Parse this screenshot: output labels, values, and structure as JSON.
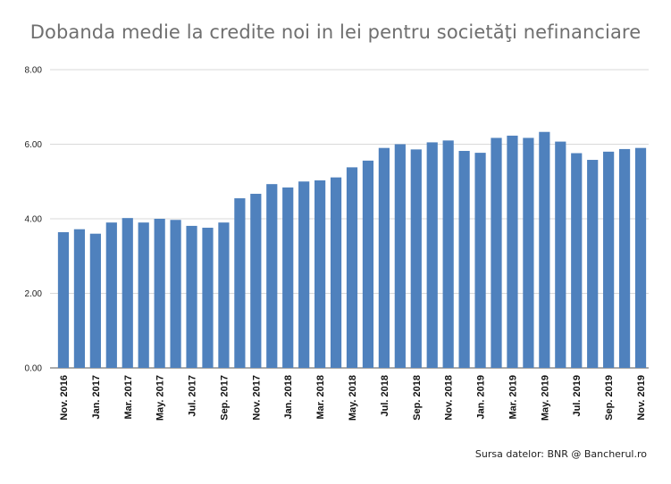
{
  "chart_data": {
    "type": "bar",
    "title": "Dobanda medie la credite noi in lei pentru societăţi nefinanciare",
    "xlabel": "",
    "ylabel": "",
    "ylim": [
      0,
      8
    ],
    "yticks": [
      "0.00",
      "2.00",
      "4.00",
      "6.00",
      "8.00"
    ],
    "grid": true,
    "bar_color": "#4f81bd",
    "categories": [
      "Nov. 2016",
      "Dec. 2016",
      "Jan. 2017",
      "Feb. 2017",
      "Mar. 2017",
      "Apr. 2017",
      "May. 2017",
      "Jun. 2017",
      "Jul. 2017",
      "Aug. 2017",
      "Sep. 2017",
      "Oct. 2017",
      "Nov. 2017",
      "Dec. 2017",
      "Jan. 2018",
      "Feb. 2018",
      "Mar. 2018",
      "Apr. 2018",
      "May. 2018",
      "Jun. 2018",
      "Jul. 2018",
      "Aug. 2018",
      "Sep. 2018",
      "Oct. 2018",
      "Nov. 2018",
      "Dec. 2018",
      "Jan. 2019",
      "Feb. 2019",
      "Mar. 2019",
      "Apr. 2019",
      "May. 2019",
      "Jun. 2019",
      "Jul. 2019",
      "Aug. 2019",
      "Sep. 2019",
      "Oct. 2019",
      "Nov. 2019"
    ],
    "visible_tick_labels": [
      "Nov. 2016",
      "",
      "Jan. 2017",
      "",
      "Mar. 2017",
      "",
      "May. 2017",
      "",
      "Jul. 2017",
      "",
      "Sep. 2017",
      "",
      "Nov. 2017",
      "",
      "Jan. 2018",
      "",
      "Mar. 2018",
      "",
      "May. 2018",
      "",
      "Jul. 2018",
      "",
      "Sep. 2018",
      "",
      "Nov. 2018",
      "",
      "Jan. 2019",
      "",
      "Mar. 2019",
      "",
      "May. 2019",
      "",
      "Jul. 2019",
      "",
      "Sep. 2019",
      "",
      "Nov. 2019"
    ],
    "values": [
      3.64,
      3.72,
      3.6,
      3.9,
      4.02,
      3.9,
      4.0,
      3.97,
      3.81,
      3.76,
      3.9,
      4.55,
      4.67,
      4.93,
      4.84,
      5.0,
      5.03,
      5.11,
      5.38,
      5.56,
      5.9,
      6.0,
      5.86,
      6.05,
      6.1,
      5.82,
      5.77,
      6.17,
      6.23,
      6.17,
      6.33,
      6.07,
      5.76,
      5.58,
      5.8,
      5.87,
      5.9
    ]
  },
  "source_note": "Sursa datelor: BNR @ Bancherul.ro"
}
